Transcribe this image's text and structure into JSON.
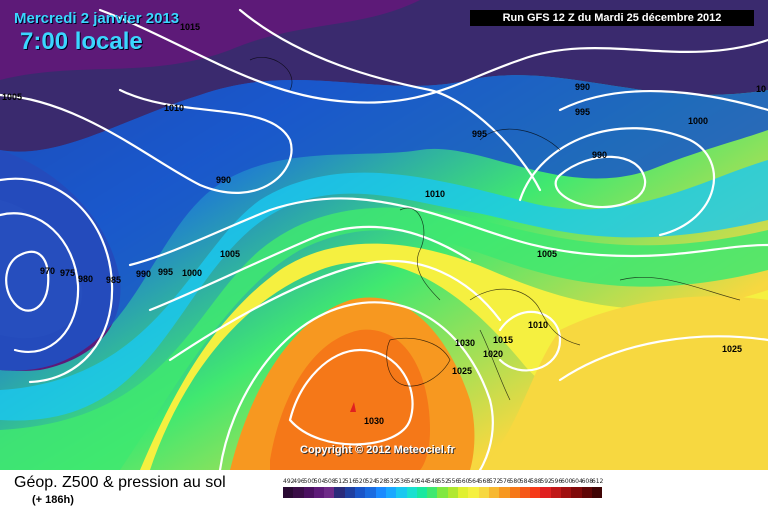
{
  "header": {
    "date": "Mercredi 2 janvier 2013",
    "local_time": "7:00 locale",
    "run_info": "Run GFS 12 Z du Mardi 25 décembre 2012"
  },
  "copyright": "Copyright © 2012 Meteociel.fr",
  "caption": {
    "title": "Géop. Z500 & pression au sol",
    "lead": "(+ 186h)"
  },
  "isobar_labels": [
    "1015",
    "1005",
    "1010",
    "990",
    "995",
    "990",
    "1000",
    "990",
    "995",
    "10",
    "1010",
    "970",
    "975",
    "980",
    "985",
    "990",
    "995",
    "1000",
    "1005",
    "1005",
    "1010",
    "1015",
    "1020",
    "1025",
    "1030",
    "1030",
    "1025"
  ],
  "legend": {
    "values": [
      "492",
      "496",
      "500",
      "504",
      "508",
      "512",
      "516",
      "520",
      "524",
      "528",
      "532",
      "536",
      "540",
      "544",
      "548",
      "552",
      "556",
      "560",
      "564",
      "568",
      "572",
      "576",
      "580",
      "584",
      "588",
      "592",
      "596",
      "600",
      "604",
      "608",
      "612"
    ],
    "colors": [
      "#2a0a33",
      "#3a0d47",
      "#4a1060",
      "#5d1a78",
      "#6e2a88",
      "#2a2a7a",
      "#1f3fa0",
      "#1a55c8",
      "#1a6be0",
      "#1a8aff",
      "#1aa8ff",
      "#1ac8f0",
      "#1ae0d0",
      "#1ae8a0",
      "#40e870",
      "#80e840",
      "#b0e830",
      "#e0f030",
      "#f5f040",
      "#f7d840",
      "#f7b830",
      "#f79820",
      "#f57818",
      "#f55818",
      "#f53a18",
      "#e02020",
      "#c01818",
      "#a01010",
      "#800a0a",
      "#600606",
      "#400404"
    ]
  }
}
